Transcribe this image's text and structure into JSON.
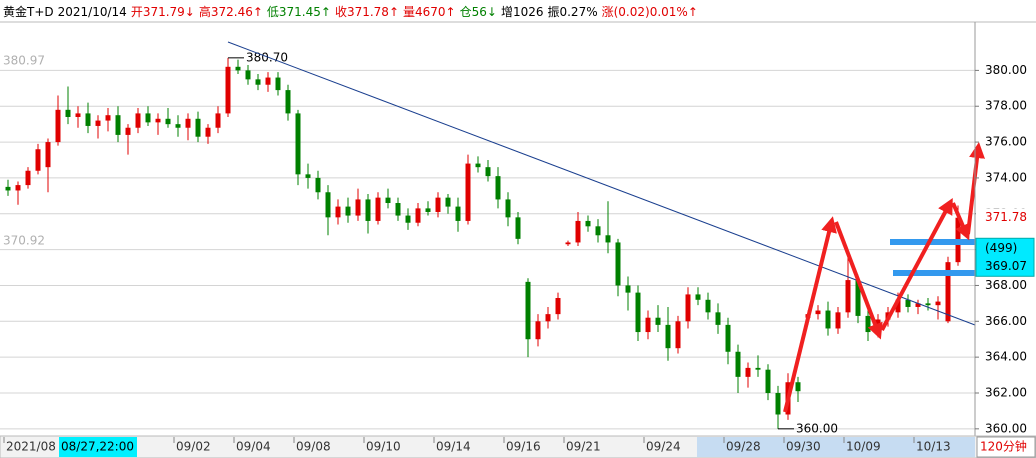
{
  "chart_data": {
    "type": "candlestick",
    "header": [
      {
        "text": "黄金T+D",
        "color": "#000000"
      },
      {
        "text": "2021/10/14",
        "color": "#000000"
      },
      {
        "text": "开371.79↓",
        "color": "#e00000"
      },
      {
        "text": "高372.46↑",
        "color": "#e00000"
      },
      {
        "text": "低371.45↑",
        "color": "#008000"
      },
      {
        "text": "收371.78↑",
        "color": "#e00000"
      },
      {
        "text": "量4670↑",
        "color": "#e00000"
      },
      {
        "text": "仓56↓",
        "color": "#008000"
      },
      {
        "text": "增1026",
        "color": "#000000"
      },
      {
        "text": "振0.27%",
        "color": "#000000"
      },
      {
        "text": "涨(0.02)0.01%↑",
        "color": "#e00000"
      }
    ],
    "up_color": "#e00000",
    "down_color": "#008000",
    "ylim": [
      359.6,
      382.7
    ],
    "yticks": [
      {
        "value": 360,
        "label": "360.00"
      },
      {
        "value": 362,
        "label": "362.00"
      },
      {
        "value": 364,
        "label": "364.00"
      },
      {
        "value": 366,
        "label": "366.00"
      },
      {
        "value": 368,
        "label": "368.00"
      },
      {
        "value": 370,
        "label": "370.00"
      },
      {
        "value": 372,
        "label": "372.00"
      },
      {
        "value": 374,
        "label": "374.00"
      },
      {
        "value": 376,
        "label": "376.00"
      },
      {
        "value": 378,
        "label": "378.00"
      },
      {
        "value": 380,
        "label": "380.00"
      }
    ],
    "grid": true,
    "left_labels": [
      {
        "value": 380.97,
        "label": "380.97"
      },
      {
        "value": 370.92,
        "label": "370.92"
      }
    ],
    "annotations": [
      {
        "value": 380.7,
        "label": "380.70"
      },
      {
        "value": 360,
        "label": "360.00"
      }
    ],
    "last_price": 371.78,
    "cursor_change": "(499)",
    "cursor_price": 369.07,
    "cursor_time": "08/27,22:00",
    "period": "120分钟",
    "categories": [
      "2021/08",
      null,
      null,
      null,
      null,
      null,
      null,
      null,
      null,
      null,
      null,
      null,
      null,
      null,
      null,
      null,
      null,
      "09/02",
      null,
      null,
      null,
      null,
      null,
      "09/04",
      null,
      null,
      null,
      null,
      null,
      "09/08",
      null,
      null,
      null,
      null,
      null,
      null,
      "09/10",
      null,
      null,
      null,
      null,
      null,
      null,
      "09/14",
      null,
      null,
      null,
      null,
      null,
      null,
      "09/16",
      null,
      null,
      null,
      null,
      null,
      "09/21",
      null,
      null,
      null,
      null,
      null,
      null,
      null,
      "09/24",
      null,
      null,
      null,
      null,
      null,
      null,
      null,
      "09/28",
      null,
      null,
      null,
      null,
      null,
      "09/30",
      null,
      null,
      null,
      null,
      null,
      "10/09",
      null,
      null,
      null,
      null,
      null,
      null,
      "10/13",
      null,
      null,
      null,
      null
    ],
    "candles": [
      [
        373.5,
        373.9,
        373.0,
        373.3
      ],
      [
        373.3,
        373.8,
        372.5,
        373.6
      ],
      [
        373.6,
        374.6,
        373.4,
        374.4
      ],
      [
        374.4,
        375.9,
        374.2,
        375.6
      ],
      [
        374.6,
        376.2,
        373.2,
        376.0
      ],
      [
        376.0,
        378.6,
        375.8,
        377.8
      ],
      [
        377.8,
        379.1,
        377.0,
        377.4
      ],
      [
        377.4,
        378.0,
        376.8,
        377.6
      ],
      [
        377.6,
        378.2,
        376.5,
        376.9
      ],
      [
        376.9,
        377.5,
        376.2,
        377.2
      ],
      [
        377.2,
        377.9,
        376.6,
        377.5
      ],
      [
        377.5,
        378.0,
        376.0,
        376.4
      ],
      [
        376.4,
        377.0,
        375.3,
        376.8
      ],
      [
        376.8,
        377.9,
        376.5,
        377.6
      ],
      [
        377.6,
        378.0,
        376.9,
        377.1
      ],
      [
        377.1,
        377.6,
        376.4,
        377.3
      ],
      [
        377.3,
        377.9,
        376.8,
        377.0
      ],
      [
        377.0,
        377.5,
        376.3,
        376.8
      ],
      [
        376.8,
        377.6,
        376.1,
        377.3
      ],
      [
        377.3,
        377.7,
        376.0,
        376.3
      ],
      [
        376.3,
        377.0,
        375.9,
        376.8
      ],
      [
        376.8,
        378.0,
        376.5,
        377.6
      ],
      [
        377.6,
        380.7,
        377.4,
        380.2
      ],
      [
        380.2,
        380.6,
        379.8,
        380.0
      ],
      [
        380.0,
        380.3,
        379.2,
        379.5
      ],
      [
        379.5,
        379.8,
        378.9,
        379.2
      ],
      [
        379.2,
        379.9,
        378.8,
        379.6
      ],
      [
        379.6,
        379.9,
        378.6,
        378.9
      ],
      [
        378.9,
        379.2,
        377.2,
        377.6
      ],
      [
        377.6,
        377.8,
        373.6,
        374.2
      ],
      [
        374.2,
        374.8,
        373.4,
        374.0
      ],
      [
        374.0,
        374.4,
        372.8,
        373.2
      ],
      [
        373.2,
        373.6,
        370.8,
        371.8
      ],
      [
        371.8,
        372.8,
        371.4,
        372.4
      ],
      [
        372.4,
        372.9,
        371.5,
        371.9
      ],
      [
        371.9,
        373.4,
        371.6,
        372.8
      ],
      [
        372.8,
        373.1,
        370.9,
        371.6
      ],
      [
        371.6,
        373.2,
        371.4,
        372.9
      ],
      [
        372.9,
        373.4,
        372.3,
        372.6
      ],
      [
        372.6,
        372.9,
        371.6,
        371.9
      ],
      [
        371.9,
        372.3,
        371.1,
        371.5
      ],
      [
        371.5,
        372.6,
        371.3,
        372.3
      ],
      [
        372.3,
        372.7,
        371.9,
        372.1
      ],
      [
        372.1,
        373.2,
        371.8,
        372.9
      ],
      [
        372.9,
        373.1,
        372.0,
        372.4
      ],
      [
        372.4,
        372.9,
        371.0,
        371.6
      ],
      [
        371.6,
        375.3,
        371.4,
        374.8
      ],
      [
        374.8,
        375.2,
        374.3,
        374.6
      ],
      [
        374.6,
        375.0,
        373.8,
        374.1
      ],
      [
        374.1,
        374.6,
        372.3,
        372.8
      ],
      [
        372.8,
        373.2,
        371.3,
        371.8
      ],
      [
        371.8,
        372.1,
        370.3,
        370.6
      ],
      [
        368.2,
        368.4,
        364.0,
        365.0
      ],
      [
        365.0,
        366.4,
        364.6,
        366.0
      ],
      [
        366.0,
        366.8,
        365.6,
        366.4
      ],
      [
        366.4,
        367.6,
        366.1,
        367.3
      ],
      [
        370.3,
        370.5,
        370.2,
        370.4
      ],
      [
        370.4,
        372.1,
        370.2,
        371.6
      ],
      [
        371.6,
        371.9,
        371.0,
        371.3
      ],
      [
        371.3,
        371.7,
        370.4,
        370.8
      ],
      [
        370.8,
        372.7,
        369.8,
        370.4
      ],
      [
        370.4,
        370.6,
        367.4,
        368.0
      ],
      [
        368.0,
        368.5,
        366.6,
        367.6
      ],
      [
        367.6,
        368.0,
        364.9,
        365.4
      ],
      [
        365.4,
        366.6,
        365.0,
        366.2
      ],
      [
        366.2,
        366.9,
        365.4,
        365.8
      ],
      [
        365.8,
        366.8,
        363.8,
        364.5
      ],
      [
        364.5,
        366.3,
        364.2,
        366.0
      ],
      [
        366.0,
        367.9,
        365.6,
        367.5
      ],
      [
        367.5,
        367.9,
        366.9,
        367.2
      ],
      [
        367.2,
        367.6,
        366.1,
        366.5
      ],
      [
        366.5,
        367.0,
        365.3,
        365.8
      ],
      [
        365.8,
        366.2,
        363.6,
        364.3
      ],
      [
        364.3,
        364.7,
        362.0,
        362.9
      ],
      [
        362.9,
        363.7,
        362.3,
        363.4
      ],
      [
        363.4,
        364.1,
        362.9,
        363.3
      ],
      [
        363.3,
        363.6,
        361.6,
        362.0
      ],
      [
        362.0,
        362.4,
        360.0,
        360.8
      ],
      [
        360.8,
        363.1,
        360.5,
        362.6
      ],
      [
        362.6,
        362.9,
        361.5,
        362.1
      ],
      [
        366.2,
        366.6,
        365.8,
        366.4
      ],
      [
        366.4,
        366.9,
        366.1,
        366.6
      ],
      [
        366.6,
        367.1,
        365.2,
        365.6
      ],
      [
        365.6,
        366.8,
        365.3,
        366.5
      ],
      [
        366.5,
        369.8,
        366.2,
        368.3
      ],
      [
        368.3,
        368.6,
        365.9,
        366.3
      ],
      [
        366.3,
        366.8,
        364.9,
        365.4
      ],
      [
        365.4,
        366.4,
        365.1,
        366.1
      ],
      [
        366.1,
        366.8,
        365.7,
        366.5
      ],
      [
        366.5,
        367.6,
        366.2,
        367.2
      ],
      [
        367.2,
        367.5,
        366.5,
        366.8
      ],
      [
        366.8,
        367.2,
        366.4,
        367.0
      ],
      [
        367.0,
        367.3,
        366.6,
        366.9
      ],
      [
        366.9,
        367.4,
        366.1,
        367.1
      ],
      [
        366.0,
        369.6,
        365.9,
        369.3
      ],
      [
        369.3,
        372.46,
        369.1,
        371.78
      ]
    ]
  }
}
